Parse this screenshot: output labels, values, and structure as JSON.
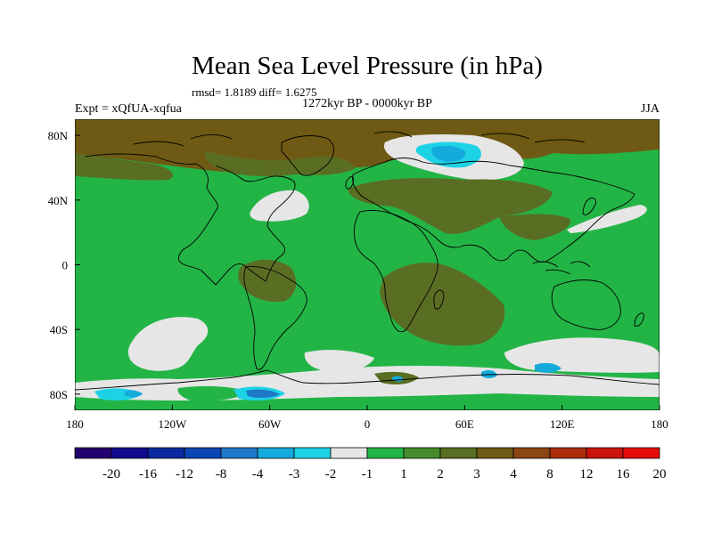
{
  "chart_data": {
    "type": "heatmap",
    "title": "Mean Sea Level Pressure (in hPa)",
    "stats_line": "rmsd= 1.8189 diff= 1.6275",
    "subtitle_center": "1272kyr BP - 0000kyr BP",
    "subtitle_left": "Expt = xQfUA-xqfua",
    "subtitle_right": "JJA",
    "x_range": [
      -180,
      180
    ],
    "y_range": [
      -90,
      90
    ],
    "x_ticks": [
      {
        "value": -180,
        "label": "180"
      },
      {
        "value": -120,
        "label": "120W"
      },
      {
        "value": -60,
        "label": "60W"
      },
      {
        "value": 0,
        "label": "0"
      },
      {
        "value": 60,
        "label": "60E"
      },
      {
        "value": 120,
        "label": "120E"
      },
      {
        "value": 180,
        "label": "180"
      }
    ],
    "y_ticks": [
      {
        "value": 80,
        "label": "80N"
      },
      {
        "value": 40,
        "label": "40N"
      },
      {
        "value": 0,
        "label": "0"
      },
      {
        "value": -40,
        "label": "40S"
      },
      {
        "value": -80,
        "label": "80S"
      }
    ],
    "colorbar": {
      "colors": [
        "#23006e",
        "#120a8c",
        "#0a28a0",
        "#0a46b4",
        "#1e78c8",
        "#14aadc",
        "#1ed2e6",
        "#e6e6e6",
        "#23b446",
        "#468c2d",
        "#5a6e23",
        "#6e5a14",
        "#8c4614",
        "#aa2d0a",
        "#c8140a",
        "#e60a0a"
      ],
      "labels": [
        "-20",
        "-16",
        "-12",
        "-8",
        "-4",
        "-3",
        "-2",
        "-1",
        "1",
        "2",
        "3",
        "4",
        "8",
        "12",
        "16",
        "20"
      ]
    },
    "field_colors": {
      "background": "#23b446",
      "level_3": "#5a6e23",
      "level_4": "#6e5a14",
      "level_2": "#468c2d",
      "near_zero": "#e6e6e6",
      "minus_3": "#14aadc",
      "minus_2": "#1ed2e6",
      "minus_4": "#1e78c8"
    }
  }
}
